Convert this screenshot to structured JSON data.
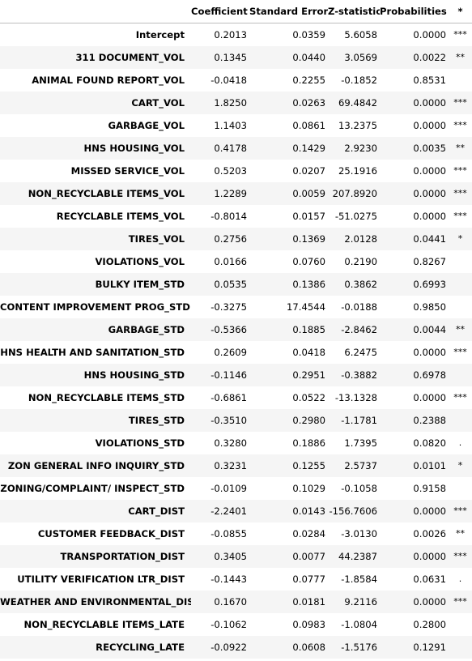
{
  "table": {
    "columns": [
      "",
      "Coefficient",
      "Standard Error",
      "Z-statistic",
      "Probabilities",
      "*"
    ],
    "rows": [
      {
        "label": "Intercept",
        "coef": "0.2013",
        "se": "0.0359",
        "z": "5.6058",
        "p": "0.0000",
        "sig": "***"
      },
      {
        "label": "311 DOCUMENT_VOL",
        "coef": "0.1345",
        "se": "0.0440",
        "z": "3.0569",
        "p": "0.0022",
        "sig": "**"
      },
      {
        "label": "ANIMAL FOUND REPORT_VOL",
        "coef": "-0.0418",
        "se": "0.2255",
        "z": "-0.1852",
        "p": "0.8531",
        "sig": ""
      },
      {
        "label": "CART_VOL",
        "coef": "1.8250",
        "se": "0.0263",
        "z": "69.4842",
        "p": "0.0000",
        "sig": "***"
      },
      {
        "label": "GARBAGE_VOL",
        "coef": "1.1403",
        "se": "0.0861",
        "z": "13.2375",
        "p": "0.0000",
        "sig": "***"
      },
      {
        "label": "HNS HOUSING_VOL",
        "coef": "0.4178",
        "se": "0.1429",
        "z": "2.9230",
        "p": "0.0035",
        "sig": "**"
      },
      {
        "label": "MISSED SERVICE_VOL",
        "coef": "0.5203",
        "se": "0.0207",
        "z": "25.1916",
        "p": "0.0000",
        "sig": "***"
      },
      {
        "label": "NON_RECYCLABLE ITEMS_VOL",
        "coef": "1.2289",
        "se": "0.0059",
        "z": "207.8920",
        "p": "0.0000",
        "sig": "***"
      },
      {
        "label": "RECYCLABLE ITEMS_VOL",
        "coef": "-0.8014",
        "se": "0.0157",
        "z": "-51.0275",
        "p": "0.0000",
        "sig": "***"
      },
      {
        "label": "TIRES_VOL",
        "coef": "0.2756",
        "se": "0.1369",
        "z": "2.0128",
        "p": "0.0441",
        "sig": "*"
      },
      {
        "label": "VIOLATIONS_VOL",
        "coef": "0.0166",
        "se": "0.0760",
        "z": "0.2190",
        "p": "0.8267",
        "sig": ""
      },
      {
        "label": "BULKY ITEM_STD",
        "coef": "0.0535",
        "se": "0.1386",
        "z": "0.3862",
        "p": "0.6993",
        "sig": ""
      },
      {
        "label": "CONTENT IMPROVEMENT PROG_STD",
        "coef": "-0.3275",
        "se": "17.4544",
        "z": "-0.0188",
        "p": "0.9850",
        "sig": ""
      },
      {
        "label": "GARBAGE_STD",
        "coef": "-0.5366",
        "se": "0.1885",
        "z": "-2.8462",
        "p": "0.0044",
        "sig": "**"
      },
      {
        "label": "HNS HEALTH AND SANITATION_STD",
        "coef": "0.2609",
        "se": "0.0418",
        "z": "6.2475",
        "p": "0.0000",
        "sig": "***"
      },
      {
        "label": "HNS HOUSING_STD",
        "coef": "-0.1146",
        "se": "0.2951",
        "z": "-0.3882",
        "p": "0.6978",
        "sig": ""
      },
      {
        "label": "NON_RECYCLABLE ITEMS_STD",
        "coef": "-0.6861",
        "se": "0.0522",
        "z": "-13.1328",
        "p": "0.0000",
        "sig": "***"
      },
      {
        "label": "TIRES_STD",
        "coef": "-0.3510",
        "se": "0.2980",
        "z": "-1.1781",
        "p": "0.2388",
        "sig": ""
      },
      {
        "label": "VIOLATIONS_STD",
        "coef": "0.3280",
        "se": "0.1886",
        "z": "1.7395",
        "p": "0.0820",
        "sig": "."
      },
      {
        "label": "ZON GENERAL INFO INQUIRY_STD",
        "coef": "0.3231",
        "se": "0.1255",
        "z": "2.5737",
        "p": "0.0101",
        "sig": "*"
      },
      {
        "label": "ZONING/COMPLAINT/ INSPECT_STD",
        "coef": "-0.0109",
        "se": "0.1029",
        "z": "-0.1058",
        "p": "0.9158",
        "sig": ""
      },
      {
        "label": "CART_DIST",
        "coef": "-2.2401",
        "se": "0.0143",
        "z": "-156.7606",
        "p": "0.0000",
        "sig": "***"
      },
      {
        "label": "CUSTOMER FEEDBACK_DIST",
        "coef": "-0.0855",
        "se": "0.0284",
        "z": "-3.0130",
        "p": "0.0026",
        "sig": "**"
      },
      {
        "label": "TRANSPORTATION_DIST",
        "coef": "0.3405",
        "se": "0.0077",
        "z": "44.2387",
        "p": "0.0000",
        "sig": "***"
      },
      {
        "label": "UTILITY VERIFICATION LTR_DIST",
        "coef": "-0.1443",
        "se": "0.0777",
        "z": "-1.8584",
        "p": "0.0631",
        "sig": "."
      },
      {
        "label": "WEATHER AND ENVIRONMENTAL_DIST",
        "coef": "0.1670",
        "se": "0.0181",
        "z": "9.2116",
        "p": "0.0000",
        "sig": "***"
      },
      {
        "label": "NON_RECYCLABLE ITEMS_LATE",
        "coef": "-0.1062",
        "se": "0.0983",
        "z": "-1.0804",
        "p": "0.2800",
        "sig": ""
      },
      {
        "label": "RECYCLING_LATE",
        "coef": "-0.0922",
        "se": "0.0608",
        "z": "-1.5176",
        "p": "0.1291",
        "sig": ""
      }
    ]
  }
}
